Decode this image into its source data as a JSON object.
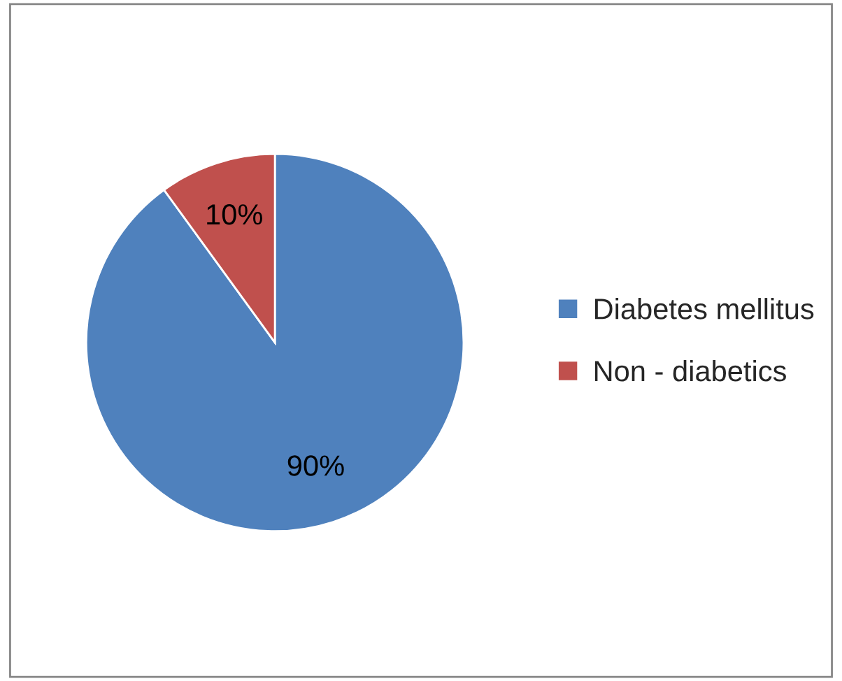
{
  "chart_data": {
    "type": "pie",
    "categories": [
      "Diabetes mellitus",
      "Non - diabetics"
    ],
    "values": [
      90,
      10
    ],
    "colors": [
      "#4f81bd",
      "#c0504d"
    ],
    "value_labels": [
      "90%",
      "10%"
    ],
    "legend": "right"
  }
}
